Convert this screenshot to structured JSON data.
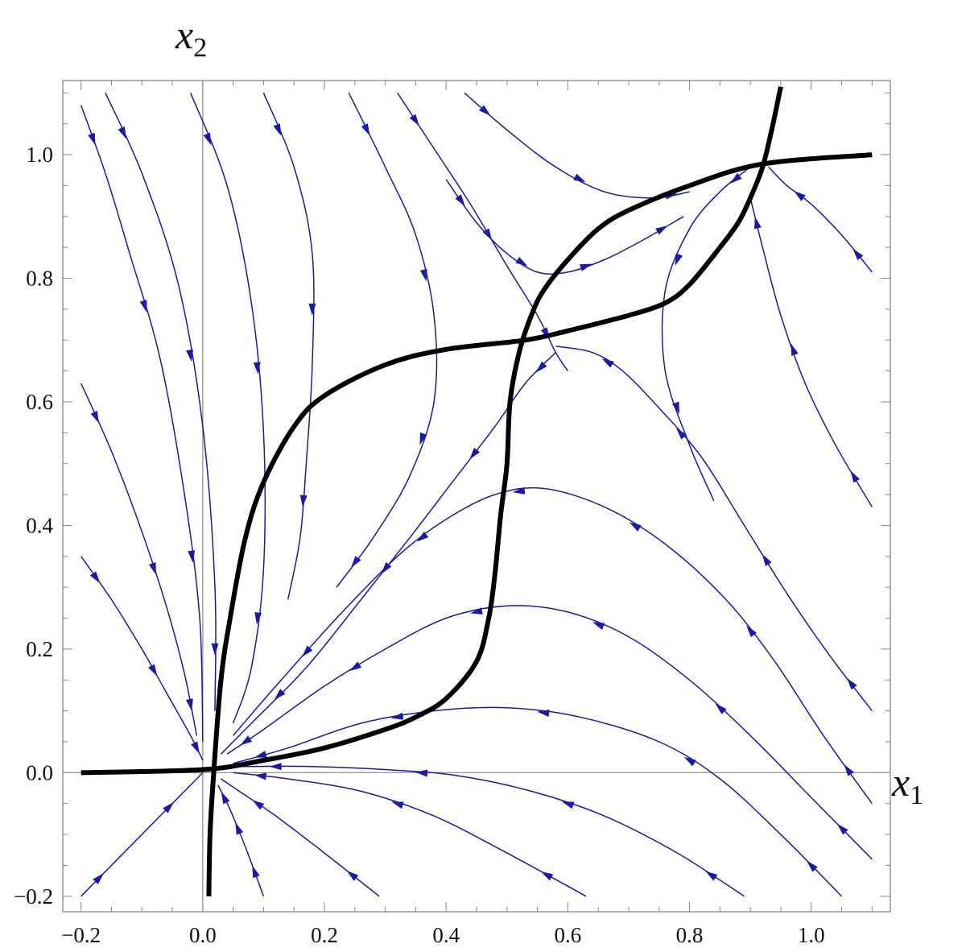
{
  "chart_data": {
    "type": "line",
    "title": "",
    "xlabel": "x",
    "xlabel_subscript": "1",
    "ylabel": "x",
    "ylabel_subscript": "2",
    "xlim": [
      -0.23,
      1.13
    ],
    "ylim": [
      -0.225,
      1.12
    ],
    "x_ticks": [
      -0.2,
      0.0,
      0.2,
      0.4,
      0.6,
      0.8,
      1.0
    ],
    "y_ticks": [
      -0.2,
      0.0,
      0.2,
      0.4,
      0.6,
      0.8,
      1.0
    ],
    "x_tick_labels": [
      "−0.2",
      "0.0",
      "0.2",
      "0.4",
      "0.6",
      "0.8",
      "1.0"
    ],
    "y_tick_labels": [
      "−0.2",
      "0.0",
      "0.2",
      "0.4",
      "0.6",
      "0.8",
      "1.0"
    ],
    "grid": false,
    "axes_through_origin": true,
    "colors": {
      "nullcline": "#000000",
      "stream": "#1a1aa6",
      "axis": "#999999",
      "frame": "#888888"
    },
    "series": [
      {
        "kind": "nullcline",
        "points": [
          [
            -0.2,
            0.0
          ],
          [
            0.0,
            0.005
          ],
          [
            0.1,
            0.02
          ],
          [
            0.2,
            0.04
          ],
          [
            0.3,
            0.07
          ],
          [
            0.35,
            0.09
          ],
          [
            0.4,
            0.12
          ],
          [
            0.45,
            0.18
          ],
          [
            0.47,
            0.25
          ],
          [
            0.48,
            0.32
          ],
          [
            0.49,
            0.42
          ],
          [
            0.5,
            0.5
          ],
          [
            0.505,
            0.6
          ],
          [
            0.52,
            0.68
          ],
          [
            0.54,
            0.74
          ],
          [
            0.56,
            0.78
          ],
          [
            0.6,
            0.83
          ],
          [
            0.65,
            0.88
          ],
          [
            0.7,
            0.91
          ],
          [
            0.8,
            0.95
          ],
          [
            0.92,
            0.985
          ],
          [
            1.1,
            1.0
          ]
        ]
      },
      {
        "kind": "nullcline",
        "points": [
          [
            0.01,
            -0.2
          ],
          [
            0.012,
            -0.1
          ],
          [
            0.018,
            0.0
          ],
          [
            0.03,
            0.15
          ],
          [
            0.045,
            0.25
          ],
          [
            0.07,
            0.38
          ],
          [
            0.1,
            0.47
          ],
          [
            0.15,
            0.56
          ],
          [
            0.2,
            0.61
          ],
          [
            0.3,
            0.66
          ],
          [
            0.4,
            0.685
          ],
          [
            0.53,
            0.7
          ],
          [
            0.6,
            0.715
          ],
          [
            0.7,
            0.74
          ],
          [
            0.76,
            0.76
          ],
          [
            0.8,
            0.79
          ],
          [
            0.85,
            0.85
          ],
          [
            0.88,
            0.89
          ],
          [
            0.9,
            0.93
          ],
          [
            0.92,
            0.98
          ],
          [
            0.935,
            1.04
          ],
          [
            0.95,
            1.11
          ]
        ]
      },
      {
        "kind": "stream",
        "points": [
          [
            -0.2,
            1.08
          ],
          [
            -0.16,
            0.97
          ],
          [
            -0.12,
            0.84
          ],
          [
            -0.07,
            0.67
          ],
          [
            -0.03,
            0.45
          ],
          [
            -0.005,
            0.25
          ],
          [
            0.0,
            0.05
          ]
        ]
      },
      {
        "kind": "stream",
        "points": [
          [
            -0.2,
            0.63
          ],
          [
            -0.15,
            0.52
          ],
          [
            -0.1,
            0.39
          ],
          [
            -0.06,
            0.27
          ],
          [
            -0.03,
            0.16
          ],
          [
            -0.01,
            0.06
          ]
        ]
      },
      {
        "kind": "stream",
        "points": [
          [
            -0.2,
            0.35
          ],
          [
            -0.15,
            0.28
          ],
          [
            -0.1,
            0.2
          ],
          [
            -0.06,
            0.13
          ],
          [
            -0.02,
            0.06
          ],
          [
            0.0,
            0.02
          ]
        ]
      },
      {
        "kind": "stream",
        "points": [
          [
            -0.16,
            1.1
          ],
          [
            -0.1,
            0.97
          ],
          [
            -0.04,
            0.79
          ],
          [
            0.0,
            0.56
          ],
          [
            0.02,
            0.3
          ],
          [
            0.02,
            0.1
          ]
        ]
      },
      {
        "kind": "stream",
        "points": [
          [
            -0.02,
            1.1
          ],
          [
            0.04,
            0.95
          ],
          [
            0.08,
            0.76
          ],
          [
            0.1,
            0.55
          ],
          [
            0.1,
            0.33
          ],
          [
            0.08,
            0.17
          ],
          [
            0.05,
            0.08
          ]
        ]
      },
      {
        "kind": "stream",
        "points": [
          [
            0.1,
            1.1
          ],
          [
            0.15,
            0.98
          ],
          [
            0.18,
            0.84
          ],
          [
            0.18,
            0.66
          ],
          [
            0.17,
            0.5
          ],
          [
            0.16,
            0.38
          ],
          [
            0.14,
            0.28
          ]
        ]
      },
      {
        "kind": "stream",
        "points": [
          [
            0.24,
            1.1
          ],
          [
            0.3,
            0.98
          ],
          [
            0.35,
            0.87
          ],
          [
            0.38,
            0.74
          ],
          [
            0.38,
            0.6
          ],
          [
            0.34,
            0.48
          ],
          [
            0.28,
            0.38
          ],
          [
            0.22,
            0.3
          ]
        ]
      },
      {
        "kind": "stream",
        "points": [
          [
            0.32,
            1.1
          ],
          [
            0.38,
            1.01
          ],
          [
            0.44,
            0.92
          ],
          [
            0.5,
            0.82
          ],
          [
            0.55,
            0.74
          ],
          [
            0.58,
            0.68
          ],
          [
            0.6,
            0.65
          ]
        ]
      },
      {
        "kind": "stream",
        "points": [
          [
            0.43,
            1.1
          ],
          [
            0.5,
            1.04
          ],
          [
            0.58,
            0.98
          ],
          [
            0.66,
            0.94
          ],
          [
            0.74,
            0.93
          ],
          [
            0.8,
            0.94
          ]
        ]
      },
      {
        "kind": "stream",
        "points": [
          [
            0.4,
            0.96
          ],
          [
            0.45,
            0.89
          ],
          [
            0.5,
            0.84
          ],
          [
            0.55,
            0.81
          ],
          [
            0.6,
            0.81
          ],
          [
            0.66,
            0.83
          ],
          [
            0.72,
            0.86
          ],
          [
            0.79,
            0.9
          ]
        ]
      },
      {
        "kind": "stream",
        "points": [
          [
            0.9,
            0.98
          ],
          [
            0.85,
            0.94
          ],
          [
            0.8,
            0.88
          ],
          [
            0.76,
            0.78
          ],
          [
            0.76,
            0.65
          ],
          [
            0.8,
            0.53
          ],
          [
            0.84,
            0.44
          ]
        ]
      },
      {
        "kind": "stream",
        "points": [
          [
            1.1,
            0.81
          ],
          [
            1.05,
            0.87
          ],
          [
            1.0,
            0.92
          ],
          [
            0.96,
            0.95
          ],
          [
            0.93,
            0.98
          ]
        ]
      },
      {
        "kind": "stream",
        "points": [
          [
            1.1,
            0.43
          ],
          [
            1.04,
            0.53
          ],
          [
            0.99,
            0.63
          ],
          [
            0.95,
            0.74
          ],
          [
            0.92,
            0.85
          ],
          [
            0.9,
            0.93
          ]
        ]
      },
      {
        "kind": "stream",
        "points": [
          [
            0.58,
            0.68
          ],
          [
            0.53,
            0.63
          ],
          [
            0.48,
            0.56
          ],
          [
            0.41,
            0.47
          ],
          [
            0.34,
            0.38
          ],
          [
            0.26,
            0.28
          ],
          [
            0.17,
            0.17
          ],
          [
            0.08,
            0.08
          ],
          [
            0.03,
            0.03
          ]
        ]
      },
      {
        "kind": "stream",
        "points": [
          [
            1.1,
            0.1
          ],
          [
            1.03,
            0.19
          ],
          [
            0.96,
            0.29
          ],
          [
            0.89,
            0.4
          ],
          [
            0.82,
            0.51
          ],
          [
            0.75,
            0.59
          ],
          [
            0.69,
            0.65
          ],
          [
            0.64,
            0.68
          ],
          [
            0.58,
            0.69
          ]
        ]
      },
      {
        "kind": "stream",
        "points": [
          [
            1.1,
            -0.05
          ],
          [
            1.02,
            0.06
          ],
          [
            0.94,
            0.18
          ],
          [
            0.86,
            0.28
          ],
          [
            0.76,
            0.37
          ],
          [
            0.66,
            0.43
          ],
          [
            0.56,
            0.46
          ],
          [
            0.48,
            0.45
          ],
          [
            0.4,
            0.41
          ],
          [
            0.32,
            0.35
          ],
          [
            0.22,
            0.25
          ],
          [
            0.12,
            0.14
          ],
          [
            0.05,
            0.06
          ]
        ]
      },
      {
        "kind": "stream",
        "points": [
          [
            1.1,
            -0.14
          ],
          [
            1.0,
            -0.04
          ],
          [
            0.9,
            0.06
          ],
          [
            0.8,
            0.15
          ],
          [
            0.7,
            0.22
          ],
          [
            0.6,
            0.26
          ],
          [
            0.5,
            0.27
          ],
          [
            0.4,
            0.25
          ],
          [
            0.3,
            0.2
          ],
          [
            0.2,
            0.14
          ],
          [
            0.1,
            0.07
          ],
          [
            0.04,
            0.03
          ]
        ]
      },
      {
        "kind": "stream",
        "points": [
          [
            1.05,
            -0.2
          ],
          [
            0.95,
            -0.1
          ],
          [
            0.85,
            -0.01
          ],
          [
            0.75,
            0.05
          ],
          [
            0.62,
            0.09
          ],
          [
            0.5,
            0.105
          ],
          [
            0.38,
            0.1
          ],
          [
            0.26,
            0.08
          ],
          [
            0.14,
            0.04
          ],
          [
            0.05,
            0.015
          ]
        ]
      },
      {
        "kind": "stream",
        "points": [
          [
            0.89,
            -0.2
          ],
          [
            0.78,
            -0.13
          ],
          [
            0.66,
            -0.07
          ],
          [
            0.54,
            -0.03
          ],
          [
            0.42,
            -0.005
          ],
          [
            0.3,
            0.005
          ],
          [
            0.18,
            0.01
          ],
          [
            0.06,
            0.01
          ],
          [
            0.03,
            0.01
          ]
        ]
      },
      {
        "kind": "stream",
        "points": [
          [
            0.63,
            -0.2
          ],
          [
            0.5,
            -0.13
          ],
          [
            0.38,
            -0.07
          ],
          [
            0.26,
            -0.03
          ],
          [
            0.14,
            -0.01
          ],
          [
            0.05,
            0.0
          ]
        ]
      },
      {
        "kind": "stream",
        "points": [
          [
            0.29,
            -0.2
          ],
          [
            0.2,
            -0.13
          ],
          [
            0.12,
            -0.07
          ],
          [
            0.06,
            -0.03
          ],
          [
            0.03,
            -0.01
          ]
        ]
      },
      {
        "kind": "stream",
        "points": [
          [
            0.1,
            -0.2
          ],
          [
            0.07,
            -0.12
          ],
          [
            0.045,
            -0.06
          ],
          [
            0.025,
            -0.02
          ]
        ]
      },
      {
        "kind": "stream",
        "points": [
          [
            -0.2,
            -0.2
          ],
          [
            -0.14,
            -0.14
          ],
          [
            -0.08,
            -0.08
          ],
          [
            -0.03,
            -0.03
          ],
          [
            0.0,
            0.0
          ]
        ]
      }
    ]
  }
}
